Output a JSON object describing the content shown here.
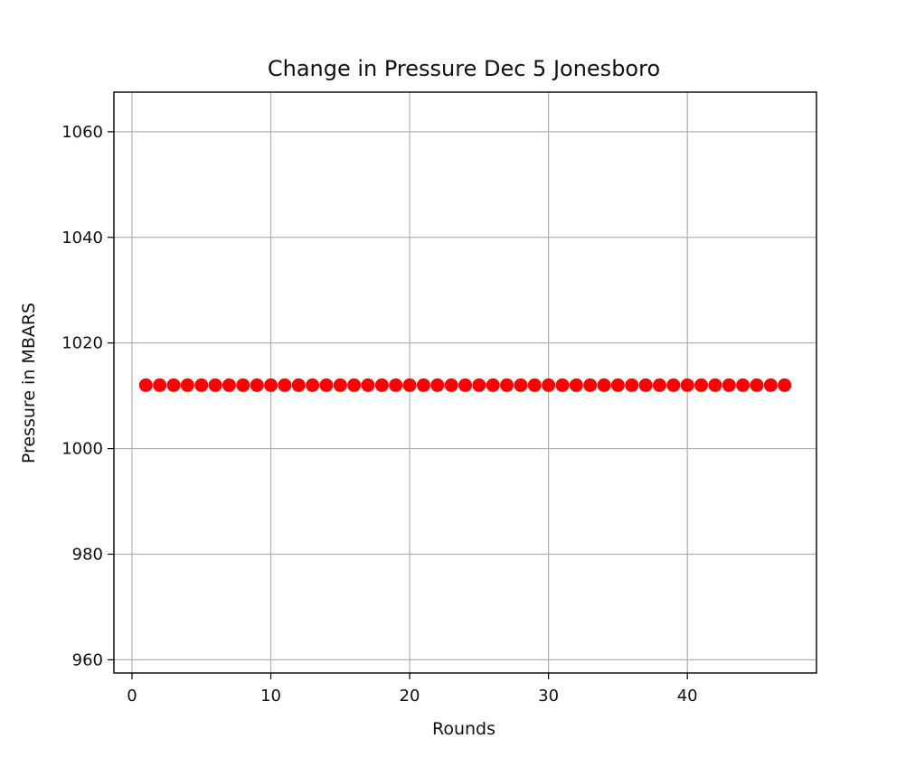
{
  "chart_data": {
    "type": "scatter",
    "title": "Change in Pressure Dec 5 Jonesboro",
    "xlabel": "Rounds",
    "ylabel": "Pressure in MBARS",
    "xlim": [
      -1.3,
      49.3
    ],
    "ylim": [
      957.5,
      1067.5
    ],
    "x_ticks": [
      0,
      10,
      20,
      30,
      40
    ],
    "y_ticks": [
      960,
      980,
      1000,
      1020,
      1040,
      1060
    ],
    "grid": true,
    "marker_color": "#ff0000",
    "series": [
      {
        "x": [
          1,
          2,
          3,
          4,
          5,
          6,
          7,
          8,
          9,
          10,
          11,
          12,
          13,
          14,
          15,
          16,
          17,
          18,
          19,
          20,
          21,
          22,
          23,
          24,
          25,
          26,
          27,
          28,
          29,
          30,
          31,
          32,
          33,
          34,
          35,
          36,
          37,
          38,
          39,
          40,
          41,
          42,
          43,
          44,
          45,
          46,
          47
        ],
        "y": [
          1012,
          1012,
          1012,
          1012,
          1012,
          1012,
          1012,
          1012,
          1012,
          1012,
          1012,
          1012,
          1012,
          1012,
          1012,
          1012,
          1012,
          1012,
          1012,
          1012,
          1012,
          1012,
          1012,
          1012,
          1012,
          1012,
          1012,
          1012,
          1012,
          1012,
          1012,
          1012,
          1012,
          1012,
          1012,
          1012,
          1012,
          1012,
          1012,
          1012,
          1012,
          1012,
          1012,
          1012,
          1012,
          1012,
          1012
        ]
      }
    ]
  }
}
